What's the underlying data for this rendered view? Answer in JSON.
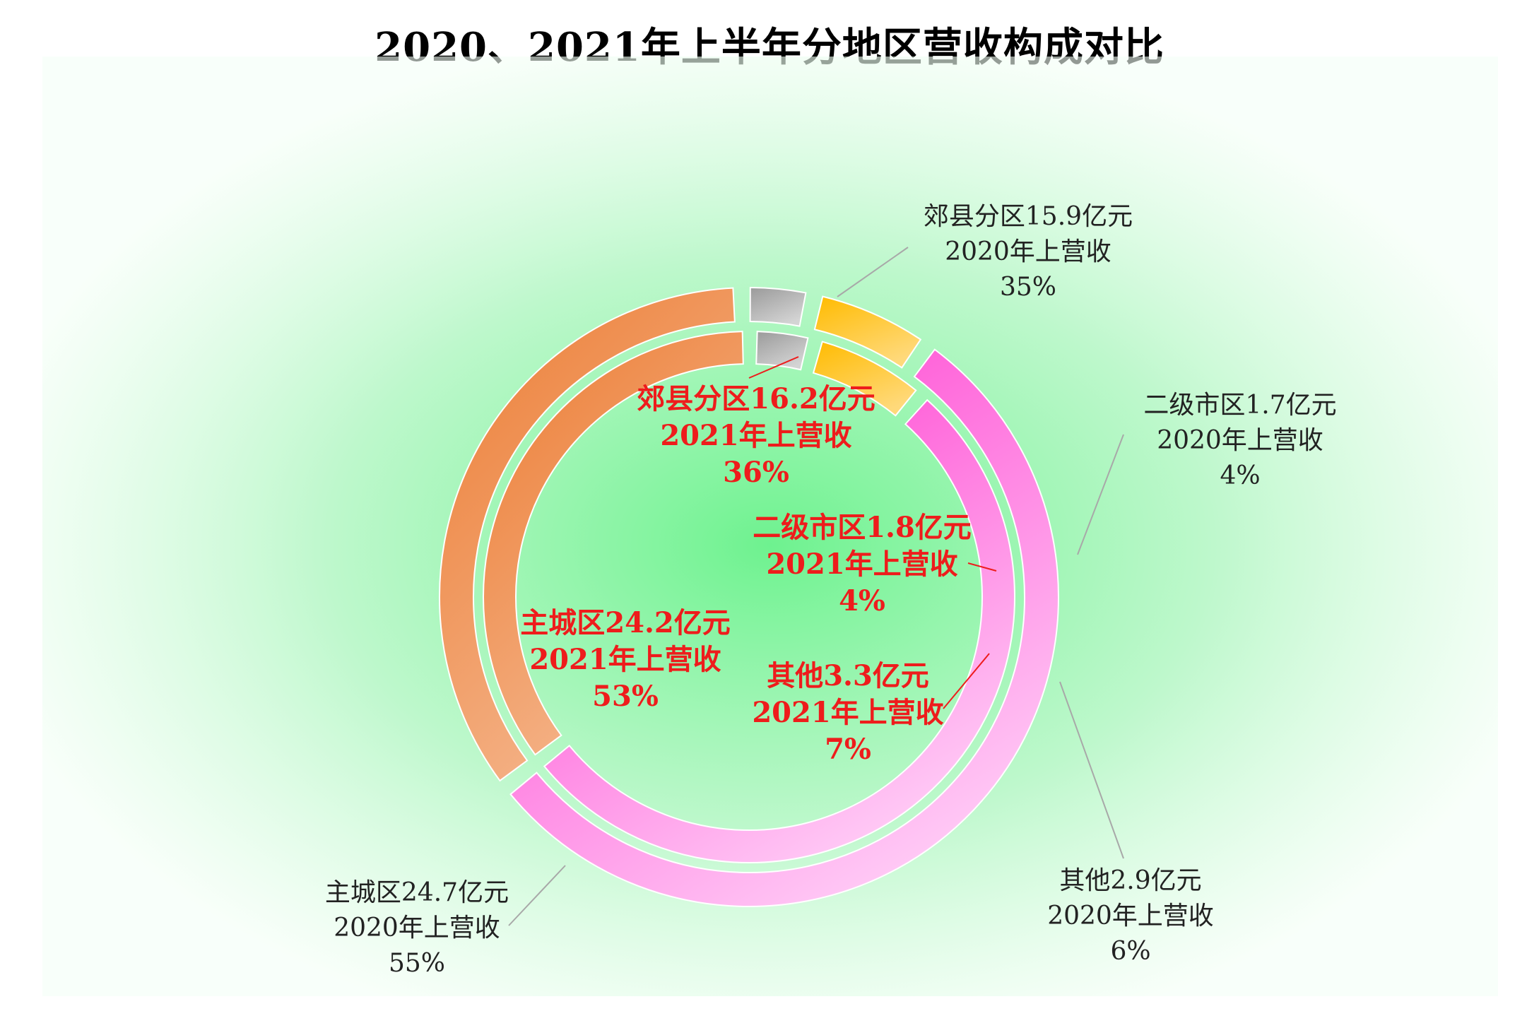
{
  "title": "2020、2021年上半年分地区营收构成对比",
  "chart_data": {
    "type": "pie",
    "title": "2020、2021年上半年分地区营收构成对比",
    "categories": [
      "郊县分区",
      "二级市区",
      "其他",
      "主城区"
    ],
    "series": [
      {
        "name": "2020年上营收",
        "ring": "outer",
        "values": [
          15.9,
          1.7,
          2.9,
          24.7
        ],
        "percents": [
          "35%",
          "4%",
          "6%",
          "55%"
        ],
        "labels": [
          [
            "郊县分区15.9亿元",
            "2020年上营收",
            "35%"
          ],
          [
            "二级市区1.7亿元",
            "2020年上营收",
            "4%"
          ],
          [
            "其他2.9亿元",
            "2020年上营收",
            "6%"
          ],
          [
            "主城区24.7亿元",
            "2020年上营收",
            "55%"
          ]
        ]
      },
      {
        "name": "2021年上营收",
        "ring": "inner",
        "values": [
          16.2,
          1.8,
          3.3,
          24.2
        ],
        "percents": [
          "36%",
          "4%",
          "7%",
          "53%"
        ],
        "labels": [
          [
            "郊县分区16.2亿元",
            "2021年上营收",
            "36%"
          ],
          [
            "二级市区1.8亿元",
            "2021年上营收",
            "4%"
          ],
          [
            "其他3.3亿元",
            "2021年上营收",
            "7%"
          ],
          [
            "主城区24.2亿元",
            "2021年上营收",
            "53%"
          ]
        ]
      }
    ],
    "colors": {
      "郊县分区": [
        "#ec7c33",
        "#f5b890"
      ],
      "二级市区": [
        "#9a9a9a",
        "#d4d4d4"
      ],
      "其他": [
        "#ffbb00",
        "#ffd97a"
      ],
      "主城区": [
        "#ff33cc",
        "#ffc8f5"
      ]
    },
    "outer_label_color": "#222222",
    "inner_label_color": "#ee1c1c",
    "background_glow": "#6ef28f"
  }
}
